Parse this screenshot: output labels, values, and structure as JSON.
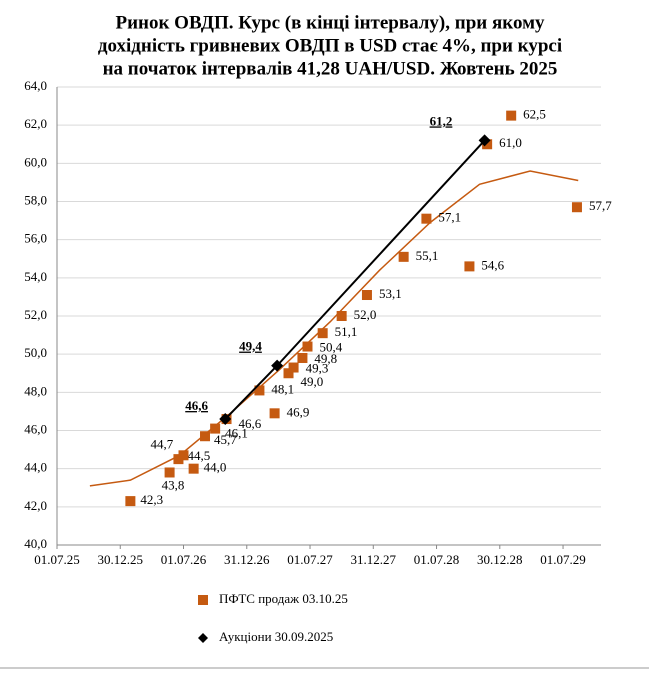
{
  "chart_data": {
    "type": "scatter",
    "title": [
      "Ринок ОВДП. Курс (в кінці інтервалу), при якому",
      "дохідність гривневих ОВДП в USD стає  4%, при курсі",
      "на початок інтервалів 41,28 UAH/USD. Жовтень 2025"
    ],
    "xlim": [
      2025.5,
      2029.8
    ],
    "xticks": [
      {
        "value": 2025.5,
        "label": "01.07.25"
      },
      {
        "value": 2026.0,
        "label": "30.12.25"
      },
      {
        "value": 2026.5,
        "label": "01.07.26"
      },
      {
        "value": 2027.0,
        "label": "31.12.26"
      },
      {
        "value": 2027.5,
        "label": "01.07.27"
      },
      {
        "value": 2028.0,
        "label": "31.12.27"
      },
      {
        "value": 2028.5,
        "label": "01.07.28"
      },
      {
        "value": 2029.0,
        "label": "30.12.28"
      },
      {
        "value": 2029.5,
        "label": "01.07.29"
      }
    ],
    "ylim": [
      40,
      64
    ],
    "yticks": [
      {
        "value": 40,
        "label": "40,0"
      },
      {
        "value": 42,
        "label": "42,0"
      },
      {
        "value": 44,
        "label": "44,0"
      },
      {
        "value": 46,
        "label": "46,0"
      },
      {
        "value": 48,
        "label": "48,0"
      },
      {
        "value": 50,
        "label": "50,0"
      },
      {
        "value": 52,
        "label": "52,0"
      },
      {
        "value": 54,
        "label": "54,0"
      },
      {
        "value": 56,
        "label": "56,0"
      },
      {
        "value": 58,
        "label": "58,0"
      },
      {
        "value": 60,
        "label": "60,0"
      },
      {
        "value": 62,
        "label": "62,0"
      },
      {
        "value": 64,
        "label": "64,0"
      }
    ],
    "grid": true,
    "series": [
      {
        "name": "ПФТС продаж 03.10.25",
        "color": "#c55a11",
        "marker": "square",
        "x": [
          2026.08,
          2026.39,
          2026.46,
          2026.5,
          2026.58,
          2026.67,
          2026.75,
          2026.84,
          2027.1,
          2027.22,
          2027.33,
          2027.37,
          2027.44,
          2027.48,
          2027.6,
          2027.75,
          2027.95,
          2028.24,
          2028.42,
          2028.76,
          2028.9,
          2029.09,
          2029.61
        ],
        "values": [
          42.3,
          43.8,
          44.5,
          44.7,
          44.0,
          45.7,
          46.1,
          46.6,
          48.1,
          46.9,
          49.0,
          49.3,
          49.8,
          50.4,
          51.1,
          52.0,
          53.1,
          55.1,
          57.1,
          54.6,
          61.0,
          62.5,
          57.7
        ],
        "value_labels": [
          "42,3",
          "43,8",
          "44,5",
          "44,7",
          "44,0",
          "45,7",
          "46,1",
          "46,6",
          "48,1",
          "46,9",
          "49,0",
          "49,3",
          "49,8",
          "50,4",
          "51,1",
          "52,0",
          "53,1",
          "55,1",
          "57,1",
          "54,6",
          "61,0",
          "62,5",
          "57,7"
        ]
      },
      {
        "name": "Аукціони 30.09.2025",
        "color": "#000000",
        "marker": "diamond",
        "line": true,
        "x": [
          2026.83,
          2027.24,
          2028.88
        ],
        "values": [
          46.6,
          49.4,
          61.2
        ],
        "value_labels": [
          "46,6",
          "49,4",
          "61,2"
        ]
      }
    ],
    "trend": {
      "color": "#c55a11",
      "x": [
        2025.76,
        2026.08,
        2026.47,
        2026.87,
        2027.26,
        2027.66,
        2028.05,
        2028.45,
        2028.84,
        2029.24,
        2029.62
      ],
      "y": [
        43.1,
        43.4,
        44.7,
        46.9,
        49.2,
        51.7,
        54.4,
        56.9,
        58.9,
        59.6,
        59.1
      ]
    }
  }
}
